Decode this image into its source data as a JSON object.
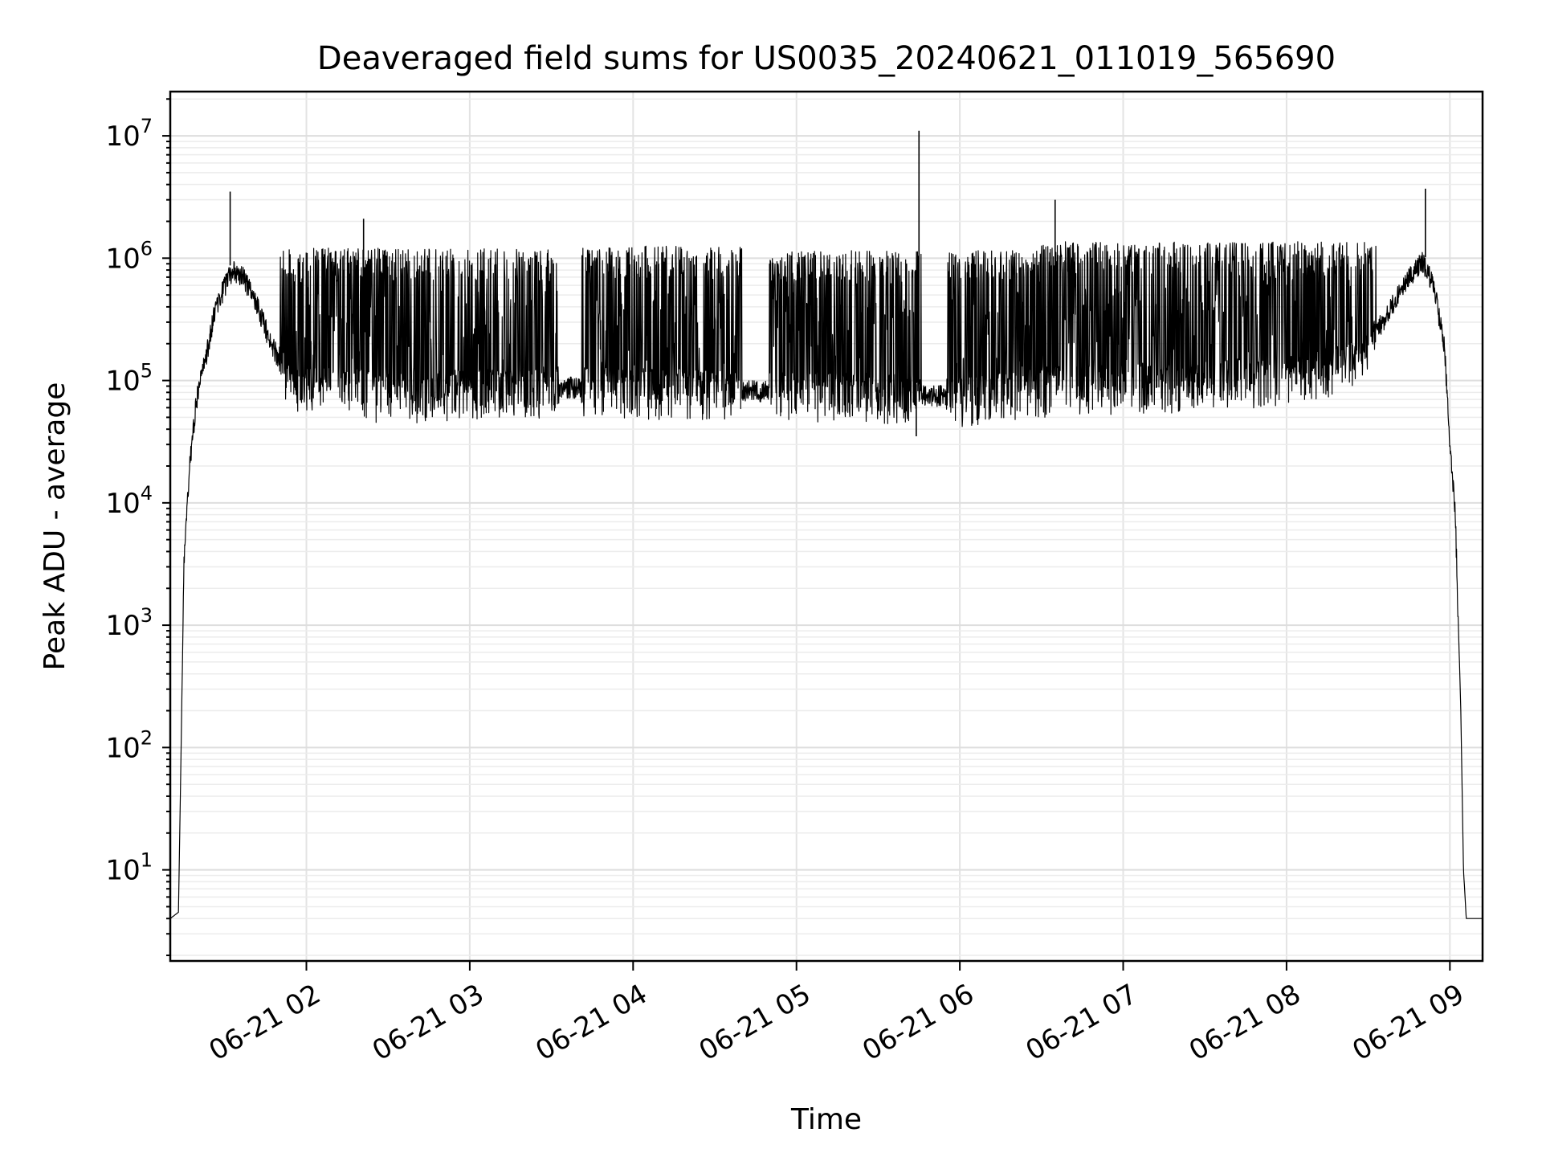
{
  "chart_data": {
    "type": "line",
    "title": "Deaveraged field sums for US0035_20240621_011019_565690",
    "xlabel": "Time",
    "ylabel": "Peak ADU - average",
    "x_axis": {
      "kind": "time",
      "range": [
        "2024-06-21 01:10",
        "2024-06-21 09:12"
      ],
      "ticks": [
        {
          "t": "2024-06-21 02:00",
          "label": "06-21 02"
        },
        {
          "t": "2024-06-21 03:00",
          "label": "06-21 03"
        },
        {
          "t": "2024-06-21 04:00",
          "label": "06-21 04"
        },
        {
          "t": "2024-06-21 05:00",
          "label": "06-21 05"
        },
        {
          "t": "2024-06-21 06:00",
          "label": "06-21 06"
        },
        {
          "t": "2024-06-21 07:00",
          "label": "06-21 07"
        },
        {
          "t": "2024-06-21 08:00",
          "label": "06-21 08"
        },
        {
          "t": "2024-06-21 09:00",
          "label": "06-21 09"
        }
      ]
    },
    "y_axis": {
      "scale": "log",
      "range": [
        1.8,
        23000000
      ],
      "ticks": [
        {
          "value": 10,
          "base": "10",
          "exp": "1"
        },
        {
          "value": 100,
          "base": "10",
          "exp": "2"
        },
        {
          "value": 1000,
          "base": "10",
          "exp": "3"
        },
        {
          "value": 10000,
          "base": "10",
          "exp": "4"
        },
        {
          "value": 100000,
          "base": "10",
          "exp": "5"
        },
        {
          "value": 1000000,
          "base": "10",
          "exp": "6"
        },
        {
          "value": 10000000,
          "base": "10",
          "exp": "7"
        }
      ]
    },
    "grid": true,
    "series": [
      {
        "color": "#000000",
        "envelope": [
          {
            "t": "2024-06-21 01:10",
            "y": 4
          },
          {
            "t": "2024-06-21 01:13",
            "y": 4.5
          },
          {
            "t": "2024-06-21 01:14",
            "y": 100
          },
          {
            "t": "2024-06-21 01:15",
            "y": 3000
          },
          {
            "t": "2024-06-21 01:17",
            "y": 20000
          },
          {
            "t": "2024-06-21 01:20",
            "y": 80000
          },
          {
            "t": "2024-06-21 01:23",
            "y": 150000
          },
          {
            "t": "2024-06-21 01:26",
            "y": 350000
          },
          {
            "t": "2024-06-21 01:30",
            "y": 600000
          },
          {
            "t": "2024-06-21 01:33",
            "y": 800000
          },
          {
            "t": "2024-06-21 01:37",
            "y": 700000
          },
          {
            "t": "2024-06-21 01:42",
            "y": 420000
          },
          {
            "t": "2024-06-21 01:47",
            "y": 200000
          },
          {
            "t": "2024-06-21 01:55",
            "y": 100000
          },
          {
            "t": "2024-06-21 02:30",
            "y": 80000
          },
          {
            "t": "2024-06-21 03:30",
            "y": 90000
          },
          {
            "t": "2024-06-21 04:30",
            "y": 85000
          },
          {
            "t": "2024-06-21 05:30",
            "y": 80000
          },
          {
            "t": "2024-06-21 06:00",
            "y": 75000
          },
          {
            "t": "2024-06-21 06:30",
            "y": 90000
          },
          {
            "t": "2024-06-21 07:30",
            "y": 100000
          },
          {
            "t": "2024-06-21 08:10",
            "y": 120000
          },
          {
            "t": "2024-06-21 08:25",
            "y": 150000
          },
          {
            "t": "2024-06-21 08:35",
            "y": 300000
          },
          {
            "t": "2024-06-21 08:45",
            "y": 700000
          },
          {
            "t": "2024-06-21 08:50",
            "y": 950000
          },
          {
            "t": "2024-06-21 08:54",
            "y": 600000
          },
          {
            "t": "2024-06-21 08:58",
            "y": 200000
          },
          {
            "t": "2024-06-21 09:00",
            "y": 30000
          },
          {
            "t": "2024-06-21 09:02",
            "y": 8000
          },
          {
            "t": "2024-06-21 09:04",
            "y": 200
          },
          {
            "t": "2024-06-21 09:05",
            "y": 10
          },
          {
            "t": "2024-06-21 09:06",
            "y": 4
          },
          {
            "t": "2024-06-21 09:12",
            "y": 4
          }
        ],
        "spikes": [
          {
            "t": "2024-06-21 01:32",
            "y": 3500000
          },
          {
            "t": "2024-06-21 02:21",
            "y": 2100000
          },
          {
            "t": "2024-06-21 05:45",
            "y": 11000000
          },
          {
            "t": "2024-06-21 05:44",
            "y": 35000
          },
          {
            "t": "2024-06-21 06:35",
            "y": 3000000
          },
          {
            "t": "2024-06-21 08:51",
            "y": 3700000
          }
        ],
        "burst_intervals": [
          {
            "start": "2024-06-21 01:50",
            "end": "2024-06-21 03:33",
            "peak": 1150000
          },
          {
            "start": "2024-06-21 03:41",
            "end": "2024-06-21 04:40",
            "peak": 1200000
          },
          {
            "start": "2024-06-21 04:50",
            "end": "2024-06-21 05:46",
            "peak": 1100000
          },
          {
            "start": "2024-06-21 05:55",
            "end": "2024-06-21 06:30",
            "peak": 1100000
          },
          {
            "start": "2024-06-21 06:30",
            "end": "2024-06-21 08:33",
            "peak": 1300000
          }
        ]
      }
    ]
  }
}
